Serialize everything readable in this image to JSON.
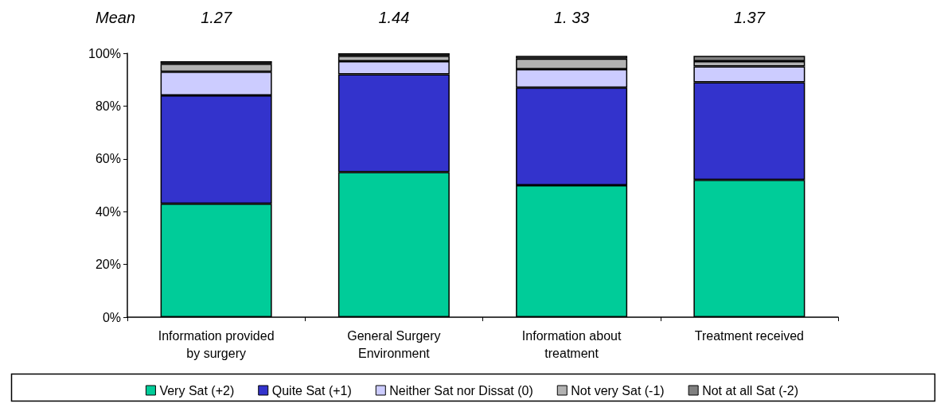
{
  "chart_data": {
    "type": "bar",
    "stacked": true,
    "categories": [
      "Information provided\nby surgery",
      "General Surgery\nEnvironment",
      "Information about\ntreatment",
      "Treatment received"
    ],
    "series": [
      {
        "name": "Very Sat (+2)",
        "color": "#00cc99",
        "values": [
          43,
          55,
          50,
          52
        ]
      },
      {
        "name": "Quite Sat (+1)",
        "color": "#3333cc",
        "values": [
          41,
          37,
          37,
          37
        ]
      },
      {
        "name": "Neither Sat nor Dissat (0)",
        "color": "#ccccff",
        "values": [
          9,
          5,
          7,
          6
        ]
      },
      {
        "name": "Not very Sat (-1)",
        "color": "#b2b2b2",
        "values": [
          3,
          2,
          4,
          2
        ]
      },
      {
        "name": "Not at all Sat (-2)",
        "color": "#808080",
        "values": [
          1,
          1,
          1,
          2
        ]
      }
    ],
    "ylim": [
      0,
      100
    ],
    "yticks": [
      {
        "value": 0,
        "label": "0%"
      },
      {
        "value": 20,
        "label": "20%"
      },
      {
        "value": 40,
        "label": "40%"
      },
      {
        "value": 60,
        "label": "60%"
      },
      {
        "value": 80,
        "label": "80%"
      },
      {
        "value": 100,
        "label": "100%"
      }
    ],
    "annotations": [
      "Mean",
      "1.27",
      "1.44",
      "1. 33",
      "1.37"
    ],
    "grid": false,
    "legend": "bottom"
  }
}
